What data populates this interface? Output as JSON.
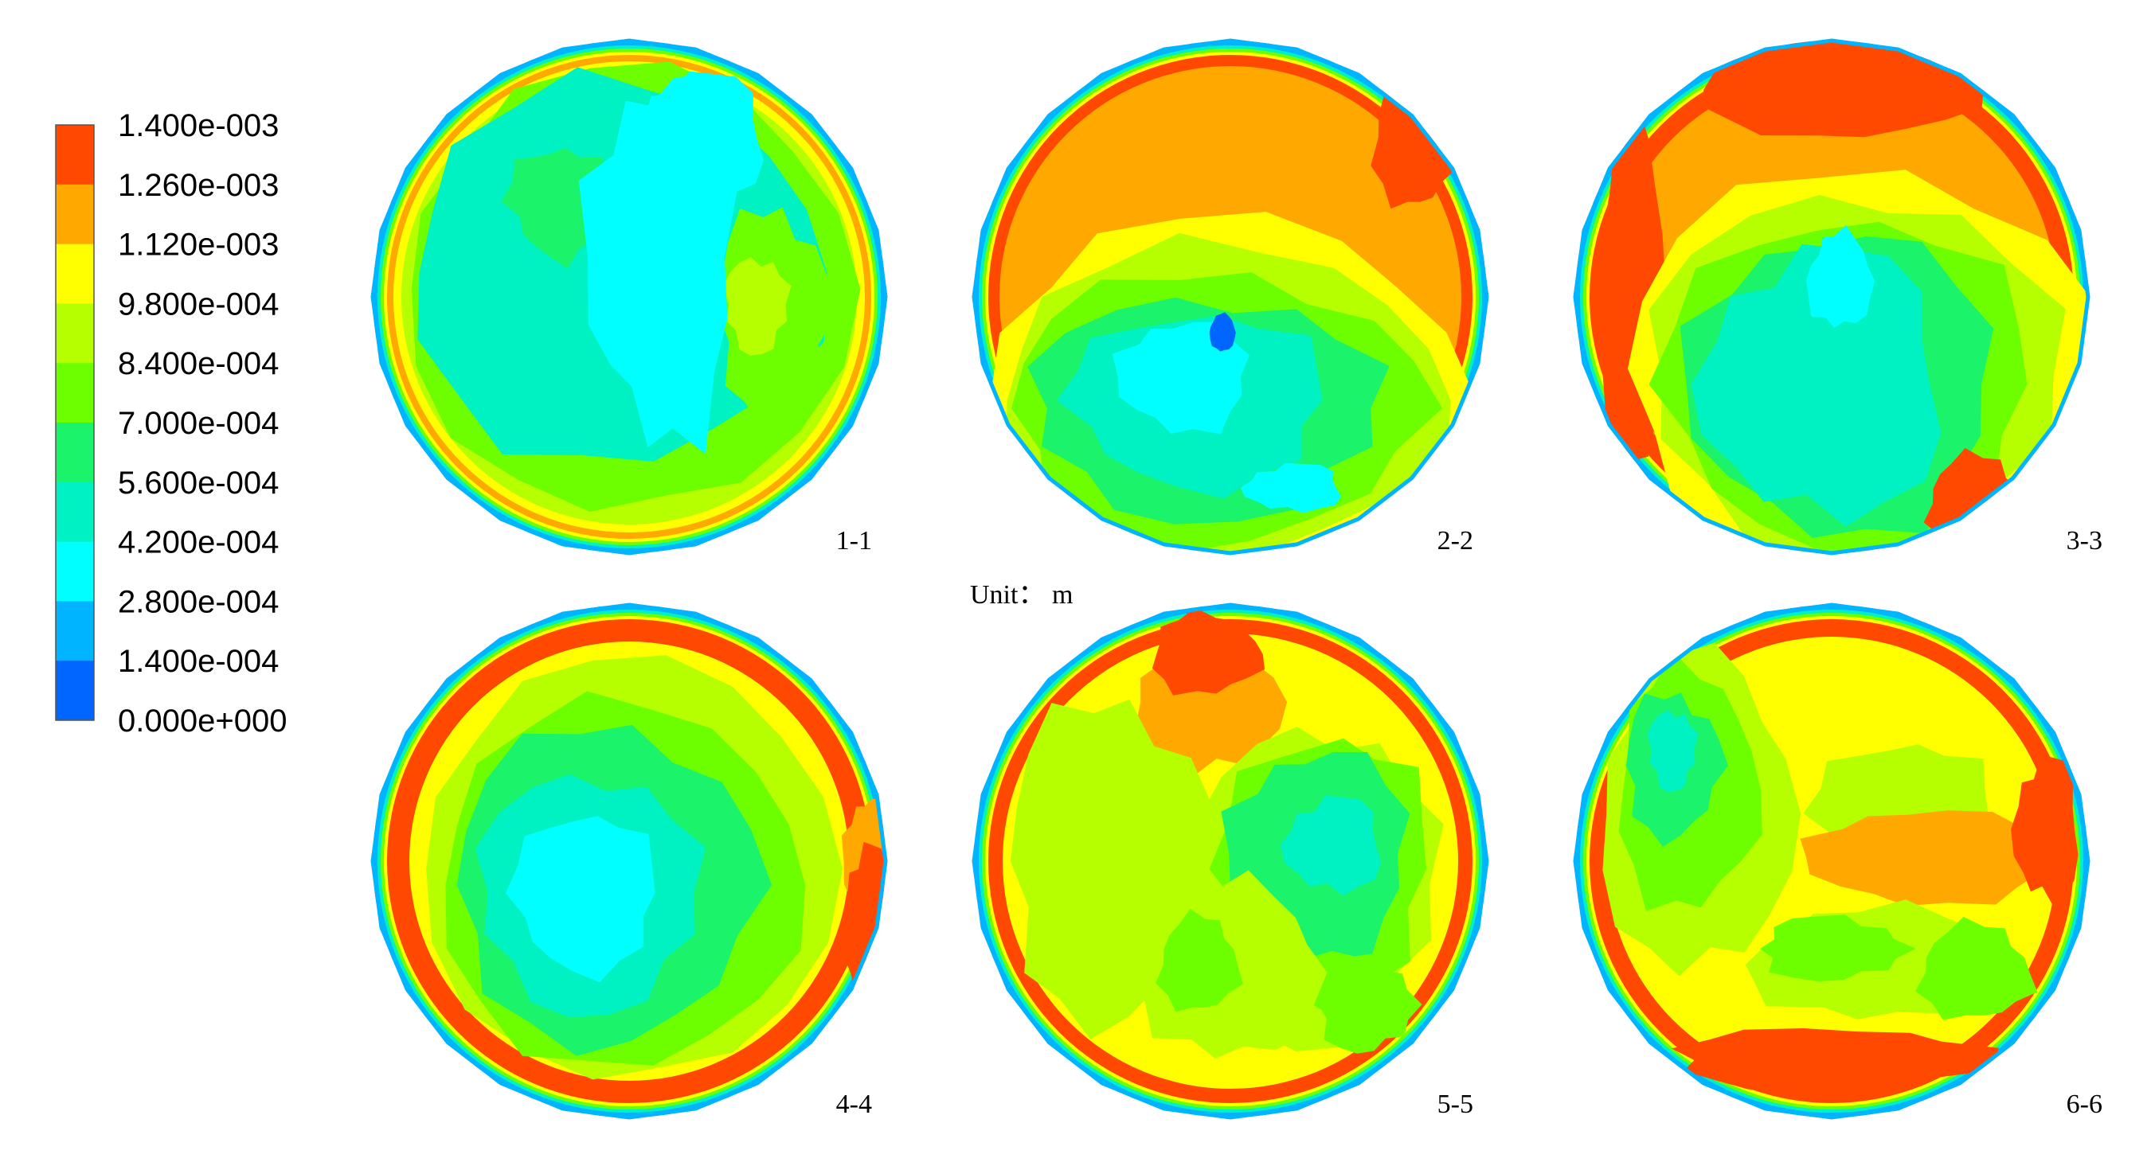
{
  "legend": {
    "levels": [
      {
        "label": "1.400e-003",
        "color": "#ff4800"
      },
      {
        "label": "1.260e-003",
        "color": "#ffa800"
      },
      {
        "label": "1.120e-003",
        "color": "#ffff00"
      },
      {
        "label": "9.800e-004",
        "color": "#b6ff00"
      },
      {
        "label": "8.400e-004",
        "color": "#6dff00"
      },
      {
        "label": "7.000e-004",
        "color": "#1bf46a"
      },
      {
        "label": "5.600e-004",
        "color": "#00f2c2"
      },
      {
        "label": "4.200e-004",
        "color": "#00ffff"
      },
      {
        "label": "2.800e-004",
        "color": "#00b4ff"
      },
      {
        "label": "1.400e-004",
        "color": "#0066ff"
      },
      {
        "label": "0.000e+000",
        "color": "#0033ff"
      }
    ]
  },
  "unit_text": "Unit： m",
  "sections": [
    {
      "label": "1-1",
      "variant": 1
    },
    {
      "label": "2-2",
      "variant": 2
    },
    {
      "label": "3-3",
      "variant": 3
    },
    {
      "label": "4-4",
      "variant": 4
    },
    {
      "label": "5-5",
      "variant": 5
    },
    {
      "label": "6-6",
      "variant": 6
    }
  ]
}
